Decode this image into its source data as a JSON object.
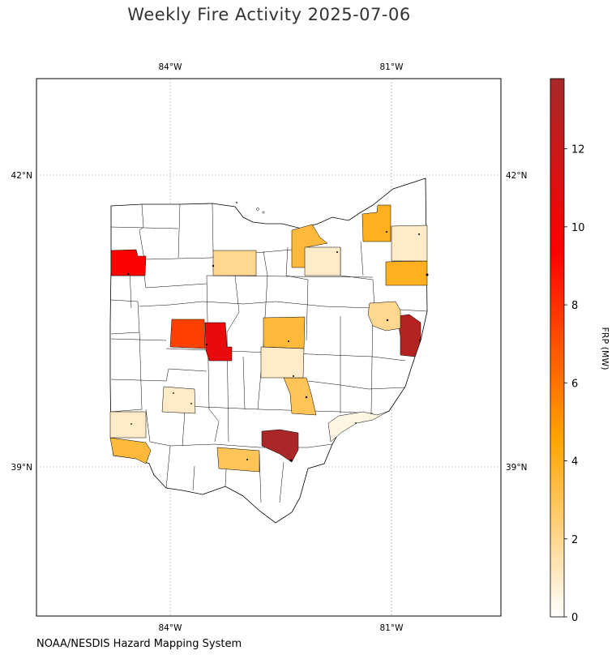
{
  "title": "Weekly Fire Activity 2025-07-06",
  "credit": "NOAA/NESDIS Hazard Mapping System",
  "map": {
    "region": "Ohio counties",
    "lon_ticks": [
      "84°W",
      "81°W"
    ],
    "lat_ticks": [
      "42°N",
      "39°N"
    ],
    "gridlines": true,
    "county_fills": [
      {
        "frp_mw": 9.5
      },
      {
        "frp_mw": 7.5
      },
      {
        "frp_mw": 10.5
      },
      {
        "frp_mw": 13.5
      },
      {
        "frp_mw": 13.0
      },
      {
        "frp_mw": 4.0
      },
      {
        "frp_mw": 4.0
      },
      {
        "frp_mw": 3.5
      },
      {
        "frp_mw": 3.5
      },
      {
        "frp_mw": 3.5
      },
      {
        "frp_mw": 3.0
      },
      {
        "frp_mw": 3.0
      },
      {
        "frp_mw": 2.0
      },
      {
        "frp_mw": 2.0
      },
      {
        "frp_mw": 1.0
      },
      {
        "frp_mw": 1.0
      },
      {
        "frp_mw": 1.0
      },
      {
        "frp_mw": 1.0
      },
      {
        "frp_mw": 1.0
      },
      {
        "frp_mw": 0.5
      }
    ]
  },
  "colorbar": {
    "label": "FRP (MW)",
    "min": 0,
    "max": 13.8,
    "ticks": [
      "0",
      "2",
      "4",
      "6",
      "8",
      "10",
      "12"
    ],
    "colors": [
      "#ffffff",
      "#ffa500",
      "#ff0000",
      "#a52a2a"
    ]
  }
}
